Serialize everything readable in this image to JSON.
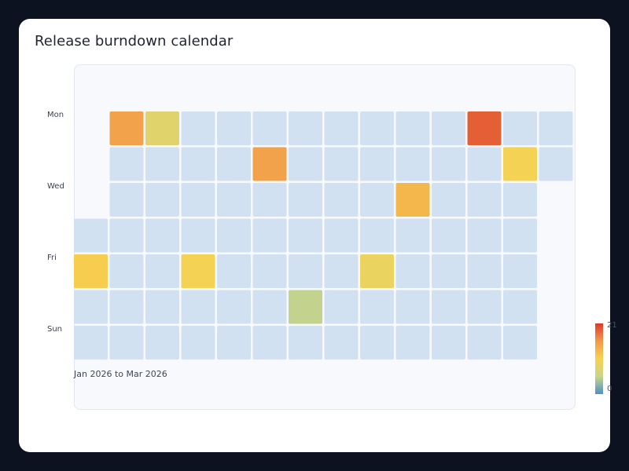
{
  "title": "Release burndown calendar",
  "chart_data": {
    "type": "heatmap",
    "title": "Release burndown calendar",
    "row_labels": [
      "Mon",
      "",
      "Wed",
      "",
      "Fri",
      "",
      "Sun"
    ],
    "columns": 14,
    "range_label": "Jan 2026 to Mar 2026",
    "cells": [
      [
        null,
        15,
        8,
        0,
        0,
        0,
        0,
        0,
        0,
        0,
        0,
        19,
        0,
        0
      ],
      [
        null,
        0,
        0,
        0,
        0,
        15,
        0,
        0,
        0,
        0,
        0,
        0,
        10,
        0
      ],
      [
        null,
        0,
        0,
        0,
        0,
        0,
        0,
        0,
        0,
        13,
        0,
        0,
        0,
        null
      ],
      [
        0,
        0,
        0,
        0,
        0,
        0,
        0,
        0,
        0,
        0,
        0,
        0,
        0,
        null
      ],
      [
        11,
        0,
        0,
        10,
        0,
        0,
        0,
        0,
        9,
        0,
        0,
        0,
        0,
        null
      ],
      [
        0,
        0,
        0,
        0,
        0,
        0,
        5,
        0,
        0,
        0,
        0,
        0,
        0,
        null
      ],
      [
        0,
        0,
        0,
        0,
        0,
        0,
        0,
        0,
        0,
        0,
        0,
        0,
        0,
        null
      ]
    ],
    "colorscale": {
      "min": 0,
      "max": 21,
      "min_label": "0",
      "max_label": "21",
      "stops": [
        "#4a90c8",
        "#c9d58a",
        "#f7d24e",
        "#f19a4a",
        "#dc3a2a"
      ],
      "empty_color": "#d1e1f2"
    }
  }
}
